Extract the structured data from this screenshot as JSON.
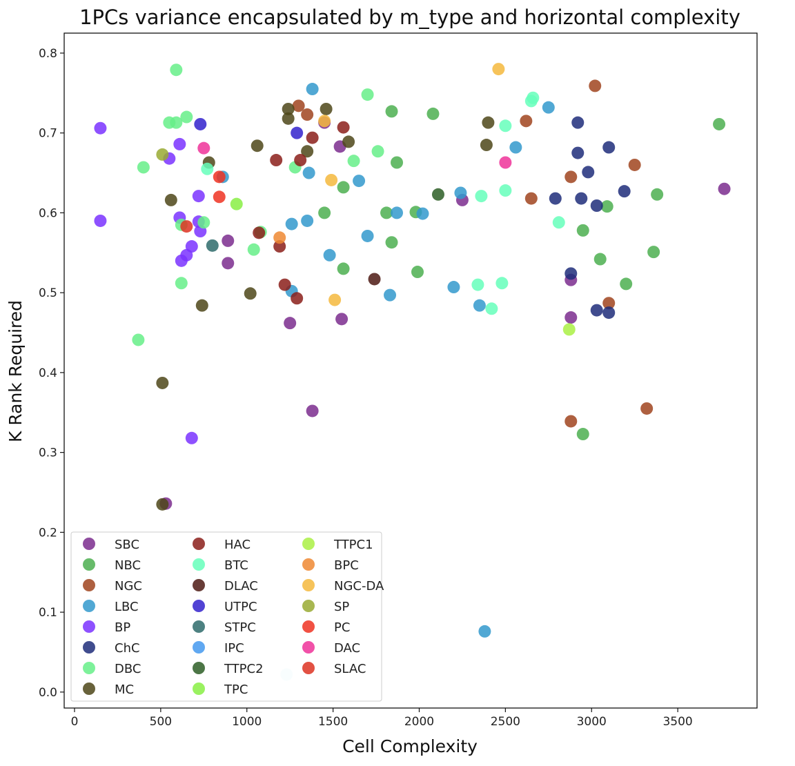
{
  "chart_data": {
    "type": "scatter",
    "title": "1PCs variance encapsulated by m_type and horizontal complexity",
    "xlabel": "Cell Complexity",
    "ylabel": "K Rank Required",
    "xlim": [
      -60,
      3960
    ],
    "ylim": [
      -0.02,
      0.825
    ],
    "xticks": [
      0,
      500,
      1000,
      1500,
      2000,
      2500,
      3000,
      3500
    ],
    "yticks": [
      0.0,
      0.1,
      0.2,
      0.3,
      0.4,
      0.5,
      0.6,
      0.7,
      0.8
    ],
    "xtick_labels": [
      "0",
      "500",
      "1000",
      "1500",
      "2000",
      "2500",
      "3000",
      "3500"
    ],
    "ytick_labels": [
      "0.0",
      "0.1",
      "0.2",
      "0.3",
      "0.4",
      "0.5",
      "0.6",
      "0.7",
      "0.8"
    ],
    "grid": false,
    "legend_position": "lower-left",
    "series": [
      {
        "name": "SBC",
        "color": "#7b2d8e",
        "points": [
          [
            1450,
            0.713
          ],
          [
            1540,
            0.683
          ],
          [
            890,
            0.565
          ],
          [
            890,
            0.537
          ],
          [
            1250,
            0.462
          ],
          [
            1550,
            0.467
          ],
          [
            1380,
            0.352
          ],
          [
            2250,
            0.616
          ],
          [
            2880,
            0.516
          ],
          [
            2880,
            0.469
          ],
          [
            3770,
            0.63
          ],
          [
            530,
            0.236
          ]
        ]
      },
      {
        "name": "NBC",
        "color": "#4caf50",
        "points": [
          [
            1840,
            0.727
          ],
          [
            2080,
            0.724
          ],
          [
            1870,
            0.663
          ],
          [
            1560,
            0.632
          ],
          [
            1450,
            0.6
          ],
          [
            1810,
            0.6
          ],
          [
            1980,
            0.601
          ],
          [
            1840,
            0.563
          ],
          [
            1560,
            0.53
          ],
          [
            1990,
            0.526
          ],
          [
            2950,
            0.578
          ],
          [
            3050,
            0.542
          ],
          [
            3090,
            0.608
          ],
          [
            3380,
            0.623
          ],
          [
            3740,
            0.711
          ],
          [
            3360,
            0.551
          ],
          [
            3200,
            0.511
          ],
          [
            2950,
            0.323
          ]
        ]
      },
      {
        "name": "NGC",
        "color": "#a0441f",
        "points": [
          [
            3020,
            0.759
          ],
          [
            3250,
            0.66
          ],
          [
            2880,
            0.645
          ],
          [
            2620,
            0.715
          ],
          [
            2650,
            0.618
          ],
          [
            3100,
            0.487
          ],
          [
            2880,
            0.339
          ],
          [
            3320,
            0.355
          ],
          [
            1300,
            0.734
          ],
          [
            1350,
            0.723
          ]
        ]
      },
      {
        "name": "LBC",
        "color": "#3399cc",
        "points": [
          [
            1380,
            0.755
          ],
          [
            2750,
            0.732
          ],
          [
            2560,
            0.682
          ],
          [
            2240,
            0.625
          ],
          [
            1360,
            0.65
          ],
          [
            1650,
            0.64
          ],
          [
            1260,
            0.586
          ],
          [
            1350,
            0.59
          ],
          [
            1870,
            0.6
          ],
          [
            2020,
            0.599
          ],
          [
            1700,
            0.571
          ],
          [
            1480,
            0.547
          ],
          [
            1260,
            0.502
          ],
          [
            1830,
            0.497
          ],
          [
            2200,
            0.507
          ],
          [
            2350,
            0.484
          ],
          [
            2380,
            0.076
          ],
          [
            860,
            0.645
          ]
        ]
      },
      {
        "name": "BP",
        "color": "#7a33ff",
        "points": [
          [
            150,
            0.706
          ],
          [
            550,
            0.668
          ],
          [
            610,
            0.686
          ],
          [
            150,
            0.59
          ],
          [
            610,
            0.594
          ],
          [
            720,
            0.621
          ],
          [
            720,
            0.589
          ],
          [
            730,
            0.577
          ],
          [
            680,
            0.558
          ],
          [
            650,
            0.547
          ],
          [
            620,
            0.54
          ],
          [
            680,
            0.318
          ]
        ]
      },
      {
        "name": "ChC",
        "color": "#1f2d7a",
        "points": [
          [
            2920,
            0.713
          ],
          [
            2920,
            0.675
          ],
          [
            2980,
            0.651
          ],
          [
            3030,
            0.609
          ],
          [
            2940,
            0.618
          ],
          [
            2790,
            0.618
          ],
          [
            3100,
            0.682
          ],
          [
            3190,
            0.627
          ],
          [
            2880,
            0.524
          ],
          [
            3030,
            0.478
          ],
          [
            3100,
            0.475
          ]
        ]
      },
      {
        "name": "DBC",
        "color": "#66ee88",
        "points": [
          [
            590,
            0.779
          ],
          [
            550,
            0.713
          ],
          [
            590,
            0.713
          ],
          [
            650,
            0.72
          ],
          [
            400,
            0.657
          ],
          [
            620,
            0.585
          ],
          [
            750,
            0.588
          ],
          [
            1040,
            0.554
          ],
          [
            1080,
            0.576
          ],
          [
            1620,
            0.665
          ],
          [
            1760,
            0.677
          ],
          [
            1700,
            0.748
          ],
          [
            620,
            0.512
          ],
          [
            370,
            0.441
          ],
          [
            1280,
            0.657
          ]
        ]
      },
      {
        "name": "MC",
        "color": "#4d4719",
        "points": [
          [
            1240,
            0.73
          ],
          [
            1240,
            0.718
          ],
          [
            1460,
            0.73
          ],
          [
            1060,
            0.684
          ],
          [
            1590,
            0.689
          ],
          [
            780,
            0.663
          ],
          [
            1350,
            0.677
          ],
          [
            560,
            0.616
          ],
          [
            2400,
            0.713
          ],
          [
            2390,
            0.685
          ],
          [
            1020,
            0.499
          ],
          [
            740,
            0.484
          ],
          [
            510,
            0.387
          ],
          [
            510,
            0.235
          ]
        ]
      },
      {
        "name": "HAC",
        "color": "#8b1f1a",
        "points": [
          [
            1560,
            0.707
          ],
          [
            1380,
            0.694
          ],
          [
            1170,
            0.666
          ],
          [
            1310,
            0.666
          ],
          [
            1190,
            0.558
          ],
          [
            1220,
            0.51
          ],
          [
            1290,
            0.493
          ],
          [
            1070,
            0.575
          ]
        ]
      },
      {
        "name": "BTC",
        "color": "#66ffbb",
        "points": [
          [
            2660,
            0.744
          ],
          [
            2650,
            0.74
          ],
          [
            2500,
            0.709
          ],
          [
            2360,
            0.621
          ],
          [
            2500,
            0.628
          ],
          [
            2810,
            0.588
          ],
          [
            2340,
            0.51
          ],
          [
            2480,
            0.512
          ],
          [
            2420,
            0.48
          ],
          [
            770,
            0.655
          ]
        ]
      },
      {
        "name": "DLAC",
        "color": "#4d1a14",
        "points": [
          [
            1740,
            0.517
          ]
        ]
      },
      {
        "name": "UTPC",
        "color": "#3322cc",
        "points": [
          [
            1290,
            0.7
          ],
          [
            730,
            0.711
          ]
        ]
      },
      {
        "name": "STPC",
        "color": "#2e6b6b",
        "points": [
          [
            800,
            0.559
          ]
        ]
      },
      {
        "name": "IPC",
        "color": "#4499ee",
        "points": []
      },
      {
        "name": "TTPC2",
        "color": "#2d5e26",
        "points": [
          [
            2110,
            0.623
          ]
        ]
      },
      {
        "name": "TPC",
        "color": "#88ee44",
        "points": [
          [
            940,
            0.611
          ]
        ]
      },
      {
        "name": "TTPC1",
        "color": "#aaf044",
        "points": [
          [
            2870,
            0.454
          ]
        ]
      },
      {
        "name": "BPC",
        "color": "#ee8833",
        "points": [
          [
            1190,
            0.569
          ]
        ]
      },
      {
        "name": "NGC-DA",
        "color": "#f5b83d",
        "points": [
          [
            2460,
            0.78
          ],
          [
            1450,
            0.715
          ],
          [
            1490,
            0.641
          ],
          [
            1510,
            0.491
          ]
        ]
      },
      {
        "name": "SP",
        "color": "#99aa33",
        "points": [
          [
            510,
            0.673
          ]
        ]
      },
      {
        "name": "PC",
        "color": "#ee3322",
        "points": [
          [
            840,
            0.62
          ],
          [
            840,
            0.645
          ]
        ]
      },
      {
        "name": "DAC",
        "color": "#ee3399",
        "points": [
          [
            750,
            0.681
          ],
          [
            2500,
            0.663
          ]
        ]
      },
      {
        "name": "SLAC",
        "color": "#dd3322",
        "points": [
          [
            650,
            0.583
          ]
        ]
      },
      {
        "name": "",
        "color": "#c6ecf2",
        "points": [
          [
            1230,
            0.022
          ]
        ]
      }
    ]
  }
}
